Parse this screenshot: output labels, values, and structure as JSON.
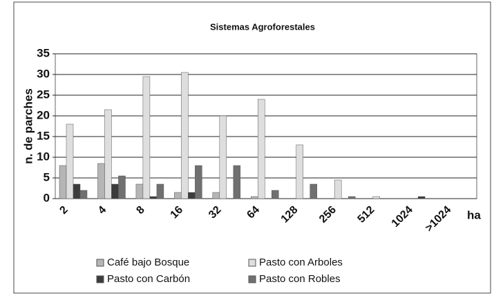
{
  "chart_data": {
    "type": "bar",
    "title": "Sistemas Agroforestales",
    "y_label": "n. de parches",
    "x_label": "ha",
    "categories": [
      "2",
      "4",
      "8",
      "16",
      "32",
      "64",
      "128",
      "256",
      "512",
      "1024",
      ">1024"
    ],
    "series": [
      {
        "name": "Café bajo Bosque",
        "color": "#b5b5b5",
        "values": [
          8,
          8.5,
          3.5,
          1.5,
          1.5,
          0.5,
          0,
          0,
          0,
          0,
          0
        ]
      },
      {
        "name": "Pasto con Arboles",
        "color": "#dedede",
        "values": [
          18,
          21.5,
          29.5,
          30.5,
          20,
          24,
          13,
          4.5,
          0.5,
          0,
          0
        ]
      },
      {
        "name": "Pasto con Carbón",
        "color": "#3c3c3c",
        "values": [
          3.5,
          3.5,
          0.5,
          1.5,
          0,
          0,
          0,
          0,
          0,
          0.5,
          0
        ]
      },
      {
        "name": "Pasto con Robles",
        "color": "#707070",
        "values": [
          2,
          5.5,
          3.5,
          8,
          8,
          2,
          3.5,
          0.5,
          0,
          0,
          0
        ]
      }
    ],
    "ylim": [
      0,
      35
    ],
    "yticks": [
      0,
      5,
      10,
      15,
      20,
      25,
      30,
      35
    ],
    "grid": true
  }
}
